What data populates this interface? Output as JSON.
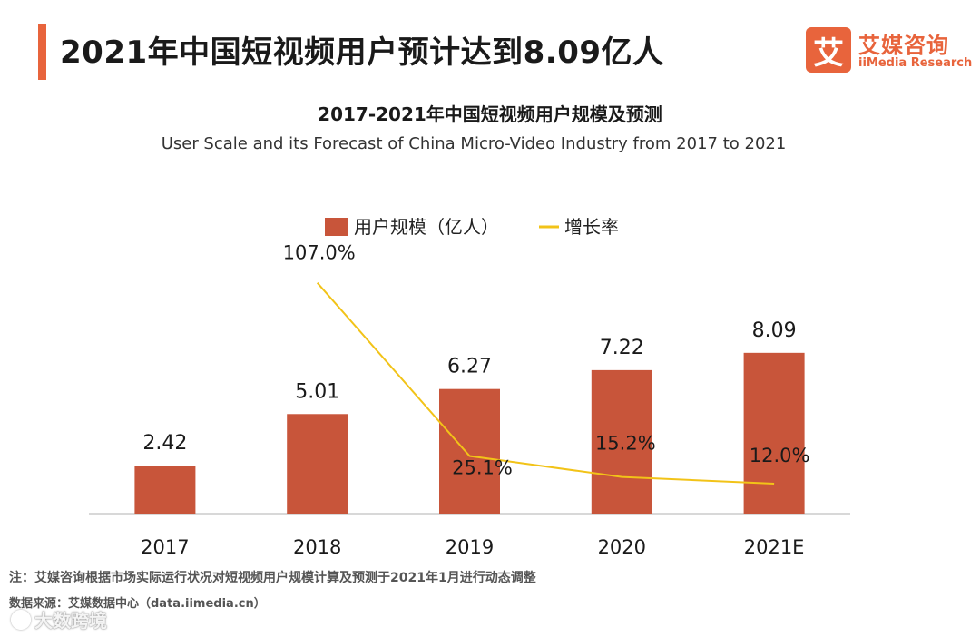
{
  "header": {
    "title": "2021年中国短视频用户预计达到8.09亿人",
    "accent_color": "#e8643c"
  },
  "logo": {
    "badge_text": "艾",
    "name_cn": "艾媒咨询",
    "name_en": "iiMedia Research",
    "color": "#e8643c"
  },
  "chart_data": {
    "type": "bar",
    "title": "2017-2021年中国短视频用户规模及预测",
    "subtitle": "User Scale and its Forecast of China Micro-Video Industry from 2017 to 2021",
    "categories": [
      "2017",
      "2018",
      "2019",
      "2020",
      "2021E"
    ],
    "series": [
      {
        "name": "用户规模（亿人）",
        "type": "bar",
        "values": [
          2.42,
          5.01,
          6.27,
          7.22,
          8.09
        ],
        "labels": [
          "2.42",
          "5.01",
          "6.27",
          "7.22",
          "8.09"
        ],
        "color": "#c8553a",
        "ylim": [
          0,
          10
        ]
      },
      {
        "name": "增长率",
        "type": "line",
        "values": [
          null,
          107.0,
          25.1,
          15.2,
          12.0
        ],
        "labels": [
          "",
          "107.0%",
          "25.1%",
          "15.2%",
          "12.0%"
        ],
        "color": "#f2c318",
        "ylim": [
          0,
          120
        ]
      }
    ],
    "legend": "top-center",
    "xlabel": "",
    "ylabel": "",
    "grid": false
  },
  "footer": {
    "note": "注：艾媒咨询根据市场实际运行状况对短视频用户规模计算及预测于2021年1月进行动态调整",
    "source": "数据来源：艾媒数据中心（data.iimedia.cn）",
    "watermark": "大数跨境"
  }
}
